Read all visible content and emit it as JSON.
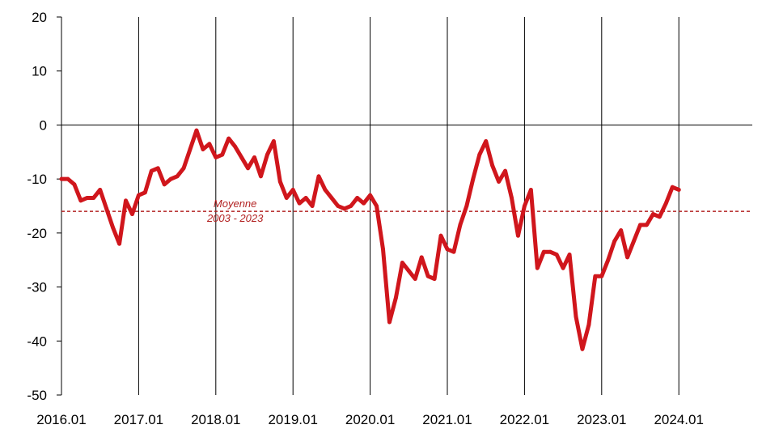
{
  "chart_data": {
    "type": "line",
    "title": "",
    "xlabel": "",
    "ylabel": "",
    "ylim": [
      -50,
      20
    ],
    "y_ticks": [
      "20",
      "10",
      "0",
      "-10",
      "-20",
      "-30",
      "-40",
      "-50"
    ],
    "x_tick_labels": [
      "2016.01",
      "2017.01",
      "2018.01",
      "2019.01",
      "2020.01",
      "2021.01",
      "2022.01",
      "2023.01",
      "2024.01"
    ],
    "grid": "vertical lines at each year",
    "colors": {
      "series": "#d0161c",
      "reference": "#b22222",
      "axis": "#000000"
    },
    "reference_line": {
      "value": -16,
      "label_line1": "Moyenne",
      "label_line2": "2003 - 2023"
    },
    "series": [
      {
        "start": "2016.01",
        "frequency": "monthly",
        "values": [
          -10,
          -10,
          -11,
          -14,
          -13.5,
          -13.5,
          -12,
          -15.5,
          -19,
          -22,
          -14,
          -16.5,
          -13,
          -12.5,
          -8.5,
          -8,
          -11,
          -10,
          -9.5,
          -8,
          -4.5,
          -1,
          -4.5,
          -3.5,
          -6,
          -5.5,
          -2.5,
          -4,
          -6,
          -8,
          -6,
          -9.5,
          -5.5,
          -3,
          -10.5,
          -13.5,
          -12,
          -14.5,
          -13.5,
          -15,
          -9.5,
          -12,
          -13.5,
          -15,
          -15.5,
          -15,
          -13.5,
          -14.5,
          -13,
          -15,
          -23,
          -36.5,
          -32,
          -25.5,
          -27,
          -28.5,
          -24.5,
          -28,
          -28.5,
          -20.5,
          -23,
          -23.5,
          -18.5,
          -15,
          -10,
          -5.5,
          -3,
          -7.5,
          -10.5,
          -8.5,
          -13.5,
          -20.5,
          -15,
          -12,
          -26.5,
          -23.5,
          -23.5,
          -24,
          -26.5,
          -24,
          -35.5,
          -41.5,
          -37,
          -28,
          -28,
          -25,
          -21.5,
          -19.5,
          -24.5,
          -21.5,
          -18.5,
          -18.5,
          -16.5,
          -17,
          -14.5,
          -11.5,
          -12
        ]
      }
    ]
  }
}
